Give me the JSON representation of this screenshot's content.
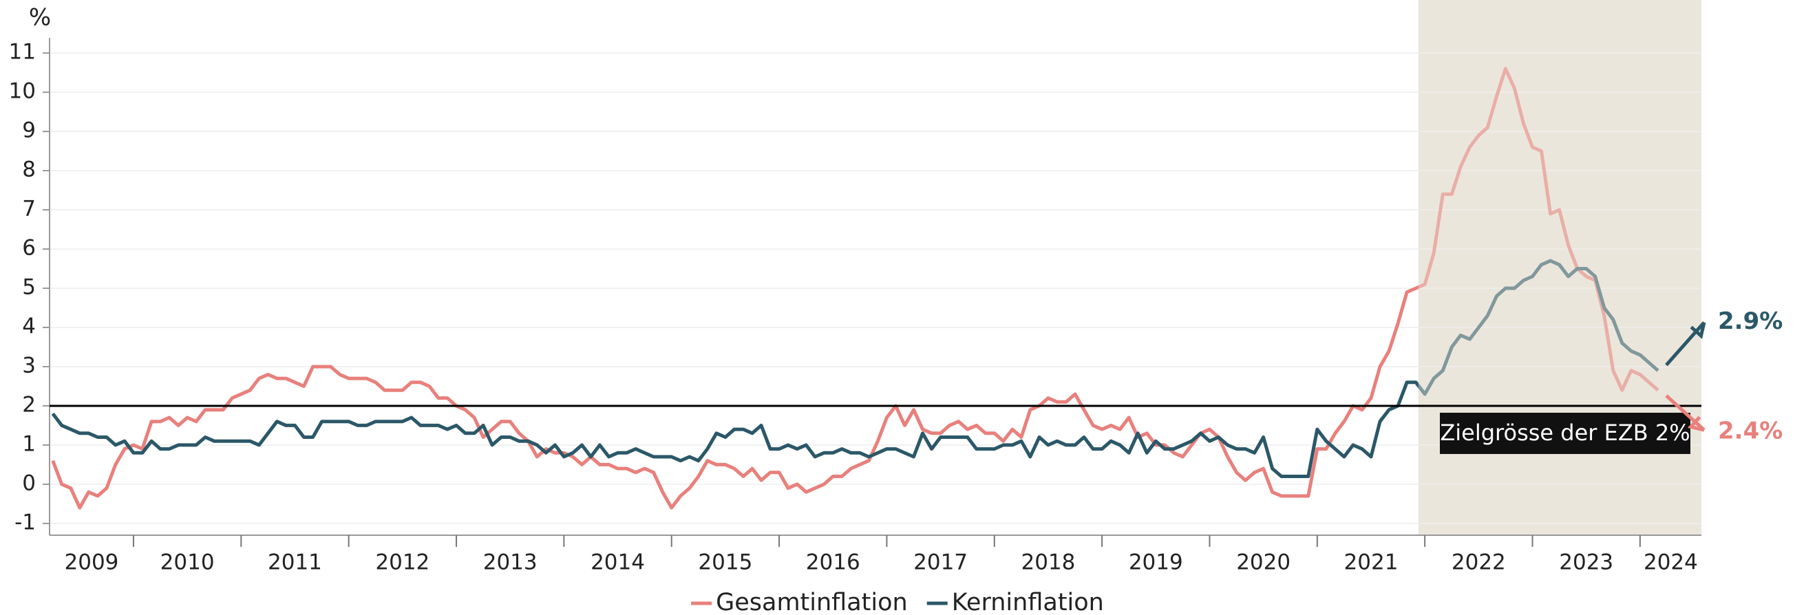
{
  "chart_data": {
    "type": "line",
    "y_label": "%",
    "x": [
      2009.25,
      2009.333,
      2009.417,
      2009.5,
      2009.583,
      2009.667,
      2009.75,
      2009.833,
      2009.917,
      2010,
      2010.083,
      2010.167,
      2010.25,
      2010.333,
      2010.417,
      2010.5,
      2010.583,
      2010.667,
      2010.75,
      2010.833,
      2010.917,
      2011,
      2011.083,
      2011.167,
      2011.25,
      2011.333,
      2011.417,
      2011.5,
      2011.583,
      2011.667,
      2011.75,
      2011.833,
      2011.917,
      2012,
      2012.083,
      2012.167,
      2012.25,
      2012.333,
      2012.417,
      2012.5,
      2012.583,
      2012.667,
      2012.75,
      2012.833,
      2012.917,
      2013,
      2013.083,
      2013.167,
      2013.25,
      2013.333,
      2013.417,
      2013.5,
      2013.583,
      2013.667,
      2013.75,
      2013.833,
      2013.917,
      2014,
      2014.083,
      2014.167,
      2014.25,
      2014.333,
      2014.417,
      2014.5,
      2014.583,
      2014.667,
      2014.75,
      2014.833,
      2014.917,
      2015,
      2015.083,
      2015.167,
      2015.25,
      2015.333,
      2015.417,
      2015.5,
      2015.583,
      2015.667,
      2015.75,
      2015.833,
      2015.917,
      2016,
      2016.083,
      2016.167,
      2016.25,
      2016.333,
      2016.417,
      2016.5,
      2016.583,
      2016.667,
      2016.75,
      2016.833,
      2016.917,
      2017,
      2017.083,
      2017.167,
      2017.25,
      2017.333,
      2017.417,
      2017.5,
      2017.583,
      2017.667,
      2017.75,
      2017.833,
      2017.917,
      2018,
      2018.083,
      2018.167,
      2018.25,
      2018.333,
      2018.417,
      2018.5,
      2018.583,
      2018.667,
      2018.75,
      2018.833,
      2018.917,
      2019,
      2019.083,
      2019.167,
      2019.25,
      2019.333,
      2019.417,
      2019.5,
      2019.583,
      2019.667,
      2019.75,
      2019.833,
      2019.917,
      2020,
      2020.083,
      2020.167,
      2020.25,
      2020.333,
      2020.417,
      2020.5,
      2020.583,
      2020.667,
      2020.75,
      2020.833,
      2020.917,
      2021,
      2021.083,
      2021.167,
      2021.25,
      2021.333,
      2021.417,
      2021.5,
      2021.583,
      2021.667,
      2021.75,
      2021.833,
      2021.917,
      2022,
      2022.083,
      2022.167,
      2022.25,
      2022.333,
      2022.417,
      2022.5,
      2022.583,
      2022.667,
      2022.75,
      2022.833,
      2022.917,
      2023,
      2023.083,
      2023.167,
      2023.25,
      2023.333,
      2023.417,
      2023.5,
      2023.583,
      2023.667,
      2023.75,
      2023.833,
      2023.917,
      2024,
      2024.083,
      2024.167
    ],
    "series": [
      {
        "name": "Gesamtinflation",
        "color": "#e8807c",
        "end_label": "2.4%",
        "values": [
          0.6,
          0.0,
          -0.1,
          -0.6,
          -0.2,
          -0.3,
          -0.1,
          0.5,
          0.9,
          1.0,
          0.9,
          1.6,
          1.6,
          1.7,
          1.5,
          1.7,
          1.6,
          1.9,
          1.9,
          1.9,
          2.2,
          2.3,
          2.4,
          2.7,
          2.8,
          2.7,
          2.7,
          2.6,
          2.5,
          3.0,
          3.0,
          3.0,
          2.8,
          2.7,
          2.7,
          2.7,
          2.6,
          2.4,
          2.4,
          2.4,
          2.6,
          2.6,
          2.5,
          2.2,
          2.2,
          2.0,
          1.9,
          1.7,
          1.2,
          1.4,
          1.6,
          1.6,
          1.3,
          1.1,
          0.7,
          0.9,
          0.8,
          0.8,
          0.7,
          0.5,
          0.7,
          0.5,
          0.5,
          0.4,
          0.4,
          0.3,
          0.4,
          0.3,
          -0.2,
          -0.6,
          -0.3,
          -0.1,
          0.2,
          0.6,
          0.5,
          0.5,
          0.4,
          0.2,
          0.4,
          0.1,
          0.3,
          0.3,
          -0.1,
          0.0,
          -0.2,
          -0.1,
          0.0,
          0.2,
          0.2,
          0.4,
          0.5,
          0.6,
          1.1,
          1.7,
          2.0,
          1.5,
          1.9,
          1.4,
          1.3,
          1.3,
          1.5,
          1.6,
          1.4,
          1.5,
          1.3,
          1.3,
          1.1,
          1.4,
          1.2,
          1.9,
          2.0,
          2.2,
          2.1,
          2.1,
          2.3,
          1.9,
          1.5,
          1.4,
          1.5,
          1.4,
          1.7,
          1.2,
          1.3,
          1.0,
          1.0,
          0.8,
          0.7,
          1.0,
          1.3,
          1.4,
          1.2,
          0.7,
          0.3,
          0.1,
          0.3,
          0.4,
          -0.2,
          -0.3,
          -0.3,
          -0.3,
          -0.3,
          0.9,
          0.9,
          1.3,
          1.6,
          2.0,
          1.9,
          2.2,
          3.0,
          3.4,
          4.1,
          4.9,
          5.0,
          5.1,
          5.9,
          7.4,
          7.4,
          8.1,
          8.6,
          8.9,
          9.1,
          9.9,
          10.6,
          10.1,
          9.2,
          8.6,
          8.5,
          6.9,
          7.0,
          6.1,
          5.5,
          5.3,
          5.2,
          4.3,
          2.9,
          2.4,
          2.9,
          2.8,
          2.6,
          2.4
        ]
      },
      {
        "name": "Kerninflation",
        "color": "#2b5868",
        "end_label": "2.9%",
        "values": [
          1.8,
          1.5,
          1.4,
          1.3,
          1.3,
          1.2,
          1.2,
          1.0,
          1.1,
          0.8,
          0.8,
          1.1,
          0.9,
          0.9,
          1.0,
          1.0,
          1.0,
          1.2,
          1.1,
          1.1,
          1.1,
          1.1,
          1.1,
          1.0,
          1.3,
          1.6,
          1.5,
          1.5,
          1.2,
          1.2,
          1.6,
          1.6,
          1.6,
          1.6,
          1.5,
          1.5,
          1.6,
          1.6,
          1.6,
          1.6,
          1.7,
          1.5,
          1.5,
          1.5,
          1.4,
          1.5,
          1.3,
          1.3,
          1.5,
          1.0,
          1.2,
          1.2,
          1.1,
          1.1,
          1.0,
          0.8,
          1.0,
          0.7,
          0.8,
          1.0,
          0.7,
          1.0,
          0.7,
          0.8,
          0.8,
          0.9,
          0.8,
          0.7,
          0.7,
          0.7,
          0.6,
          0.7,
          0.6,
          0.9,
          1.3,
          1.2,
          1.4,
          1.4,
          1.3,
          1.5,
          0.9,
          0.9,
          1.0,
          0.9,
          1.0,
          0.7,
          0.8,
          0.8,
          0.9,
          0.8,
          0.8,
          0.7,
          0.8,
          0.9,
          0.9,
          0.8,
          0.7,
          1.3,
          0.9,
          1.2,
          1.2,
          1.2,
          1.2,
          0.9,
          0.9,
          0.9,
          1.0,
          1.0,
          1.1,
          0.7,
          1.2,
          1.0,
          1.1,
          1.0,
          1.0,
          1.2,
          0.9,
          0.9,
          1.1,
          1.0,
          0.8,
          1.3,
          0.8,
          1.1,
          0.9,
          0.9,
          1.0,
          1.1,
          1.3,
          1.1,
          1.2,
          1.0,
          0.9,
          0.9,
          0.8,
          1.2,
          0.4,
          0.2,
          0.2,
          0.2,
          0.2,
          1.4,
          1.1,
          0.9,
          0.7,
          1.0,
          0.9,
          0.7,
          1.6,
          1.9,
          2.0,
          2.6,
          2.6,
          2.3,
          2.7,
          2.9,
          3.5,
          3.8,
          3.7,
          4.0,
          4.3,
          4.8,
          5.0,
          5.0,
          5.2,
          5.3,
          5.6,
          5.7,
          5.6,
          5.3,
          5.5,
          5.5,
          5.3,
          4.5,
          4.2,
          3.6,
          3.4,
          3.3,
          3.1,
          2.9
        ]
      }
    ],
    "xlim": [
      2009.22,
      2024.57
    ],
    "xticks": [
      2009,
      2010,
      2011,
      2012,
      2013,
      2014,
      2015,
      2016,
      2017,
      2018,
      2019,
      2020,
      2021,
      2022,
      2023,
      2024
    ],
    "ylim": [
      -1.3,
      11.3
    ],
    "yticks": [
      -1,
      0,
      1,
      2,
      3,
      4,
      5,
      6,
      7,
      8,
      9,
      10,
      11
    ],
    "grid": true,
    "highlight_xlim": [
      2021.94,
      2024.57
    ],
    "target": {
      "value": 2,
      "label": "Zielgrösse der EZB 2%"
    },
    "legend": "bottom"
  }
}
